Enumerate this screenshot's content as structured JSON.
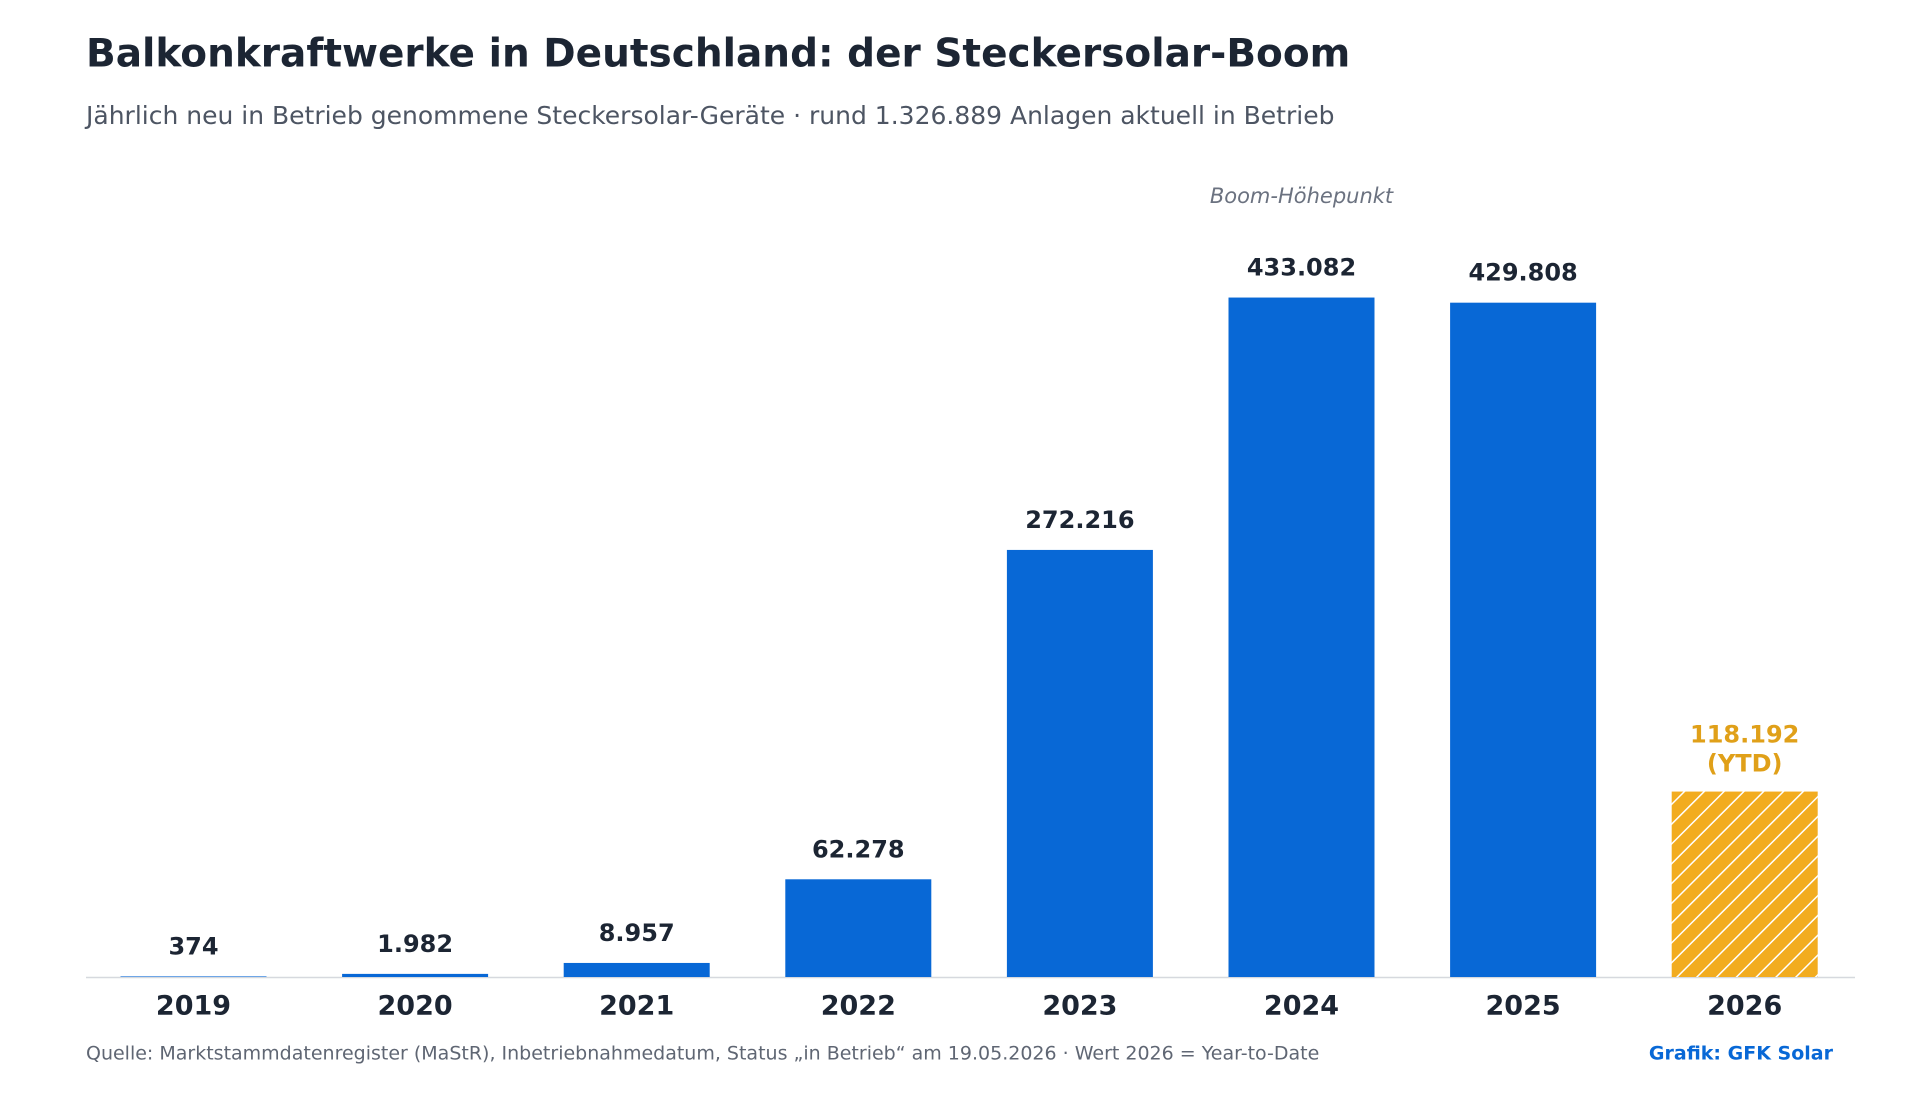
{
  "chart_data": {
    "type": "bar",
    "title": "Balkonkraftwerke in Deutschland: der Steckersolar-Boom",
    "subtitle": "Jährlich neu in Betrieb genommene Steckersolar-Geräte · rund 1.326.889 Anlagen aktuell in Betrieb",
    "annotation": "Boom-Höhepunkt",
    "categories": [
      "2019",
      "2020",
      "2021",
      "2022",
      "2023",
      "2024",
      "2025",
      "2026"
    ],
    "values": [
      374,
      1982,
      8957,
      62278,
      272216,
      433082,
      429808,
      118192
    ],
    "value_labels": [
      "374",
      "1.982",
      "8.957",
      "62.278",
      "272.216",
      "433.082",
      "429.808",
      "118.192"
    ],
    "ytd_label": "(YTD)",
    "colors": [
      "#0868d6",
      "#0868d6",
      "#0868d6",
      "#0868d6",
      "#0868d6",
      "#0868d6",
      "#0868d6",
      "#f2ac1f"
    ],
    "hatched": [
      false,
      false,
      false,
      false,
      false,
      false,
      false,
      true
    ],
    "ylim": [
      0,
      450000
    ],
    "source": "Quelle: Marktstammdatenregister (MaStR), Inbetriebnahmedatum, Status „in Betrieb“ am 19.05.2026 · Wert 2026 = Year-to-Date",
    "credit": "Grafik: GFK Solar"
  }
}
